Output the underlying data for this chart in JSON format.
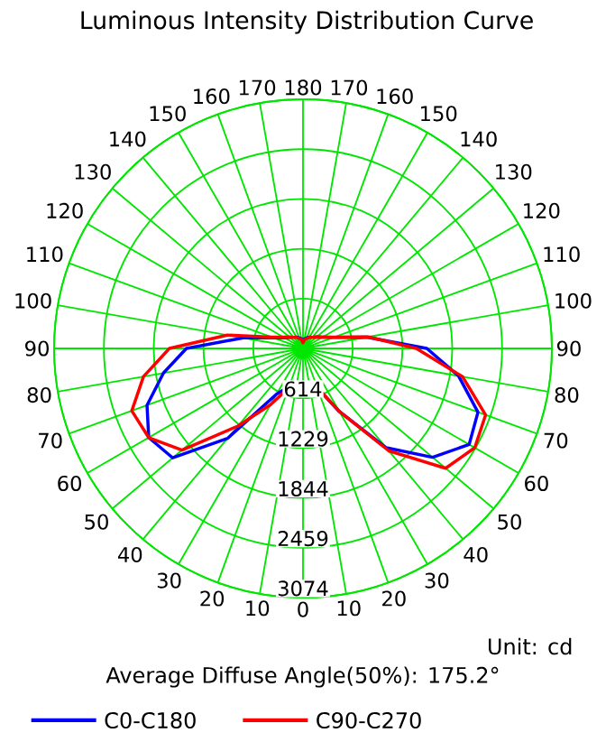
{
  "chart_data": {
    "type": "radar",
    "title": "Luminous Intensity Distribution Curve",
    "categories": [
      "180",
      "170",
      "160",
      "150",
      "140",
      "130",
      "120",
      "110",
      "100",
      "90",
      "80",
      "70",
      "60",
      "50",
      "40",
      "30",
      "20",
      "10",
      "0",
      "10",
      "20",
      "30",
      "40",
      "50",
      "60",
      "70",
      "80",
      "90",
      "100",
      "110",
      "120",
      "130",
      "140",
      "150",
      "160",
      "170"
    ],
    "series": [
      {
        "name": "C0-C180",
        "color": "#0000ff",
        "values": [
          100,
          120,
          140,
          160,
          180,
          220,
          280,
          400,
          800,
          1530,
          1950,
          2300,
          2370,
          2090,
          1600,
          900,
          520,
          440,
          416,
          430,
          500,
          650,
          1450,
          2100,
          2200,
          2050,
          1750,
          1440,
          750,
          380,
          260,
          210,
          180,
          160,
          140,
          120
        ]
      },
      {
        "name": "C90-C270",
        "color": "#ff0000",
        "values": [
          70,
          110,
          130,
          160,
          180,
          220,
          280,
          410,
          820,
          1400,
          2000,
          2400,
          2450,
          2300,
          1650,
          900,
          510,
          450,
          416,
          450,
          520,
          800,
          1250,
          1950,
          2200,
          2250,
          2000,
          1650,
          950,
          410,
          280,
          220,
          180,
          160,
          130,
          110
        ]
      }
    ],
    "ylim": [
      0,
      3074
    ],
    "yticks": [
      614,
      1229,
      1844,
      2459,
      3074
    ],
    "grid": true,
    "legend": "bottom",
    "annotations": [
      "Unit: cd",
      "Average Diffuse Angle(50%): 175.2°"
    ]
  }
}
